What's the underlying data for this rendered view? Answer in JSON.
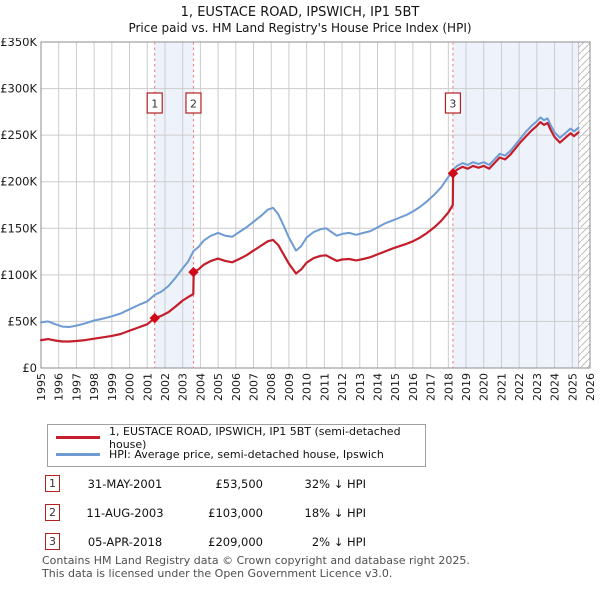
{
  "title": "1, EUSTACE ROAD, IPSWICH, IP1 5BT",
  "subtitle": "Price paid vs. HM Land Registry's House Price Index (HPI)",
  "legend": [
    {
      "label": "1, EUSTACE ROAD, IPSWICH, IP1 5BT (semi-detached house)",
      "color": "#c41e2c"
    },
    {
      "label": "HPI: Average price, semi-detached house, Ipswich",
      "color": "#6e9bd2"
    }
  ],
  "sales": [
    {
      "num": "1",
      "date": "31-MAY-2001",
      "price": "£53,500",
      "hpi_diff": "32% ↓ HPI",
      "year": 2001.42,
      "value": 53500
    },
    {
      "num": "2",
      "date": "11-AUG-2003",
      "price": "£103,000",
      "hpi_diff": "18% ↓ HPI",
      "year": 2003.61,
      "value": 103000
    },
    {
      "num": "3",
      "date": "05-APR-2018",
      "price": "£209,000",
      "hpi_diff": "2% ↓ HPI",
      "year": 2018.26,
      "value": 209000
    }
  ],
  "footer": {
    "line1": "Contains HM Land Registry data © Crown copyright and database right 2025.",
    "line2": "This data is licensed under the Open Government Licence v3.0."
  },
  "chart_data": {
    "type": "line",
    "title": "1, EUSTACE ROAD, IPSWICH, IP1 5BT — Price paid vs. HPI",
    "x_axis": {
      "min": 1995,
      "max": 2026,
      "ticks": [
        1995,
        1996,
        1997,
        1998,
        1999,
        2000,
        2001,
        2002,
        2003,
        2004,
        2005,
        2006,
        2007,
        2008,
        2009,
        2010,
        2011,
        2012,
        2013,
        2014,
        2015,
        2016,
        2017,
        2018,
        2019,
        2020,
        2021,
        2022,
        2023,
        2024,
        2025,
        2026
      ]
    },
    "y_axis": {
      "min": 0,
      "max": 350000,
      "tick_values": [
        0,
        50000,
        100000,
        150000,
        200000,
        250000,
        300000,
        350000
      ],
      "tick_labels": [
        "£0",
        "£50K",
        "£100K",
        "£150K",
        "£200K",
        "£250K",
        "£300K",
        "£350K"
      ]
    },
    "grid": true,
    "legend_position": "bottom",
    "colors": {
      "property_line": "#c41e2c",
      "hpi_line": "#6e9bd2",
      "sale_dashed_line": "#ef8585",
      "band_fill": "#eef3fb",
      "grid_line": "#cccccc",
      "frame": "#8c8c8c",
      "hatch_line": "#bdbdbd",
      "sale_marker": "#cf0a18",
      "number_box_border": "#b42121"
    },
    "bands": [
      {
        "from": 2001.42,
        "to": 2003.61
      },
      {
        "from": 2018.26,
        "to": 2025.35
      }
    ],
    "future_hatch": {
      "from": 2025.35,
      "to": 2026
    },
    "series": [
      {
        "name": "HPI: Average price, semi-detached house, Ipswich",
        "color": "#6e9bd2",
        "width": 2,
        "points": [
          [
            1995.0,
            49000
          ],
          [
            1995.4,
            50000
          ],
          [
            1995.8,
            47000
          ],
          [
            1996.2,
            44500
          ],
          [
            1996.6,
            44000
          ],
          [
            1997.0,
            45500
          ],
          [
            1997.5,
            48000
          ],
          [
            1998.0,
            51000
          ],
          [
            1998.5,
            53000
          ],
          [
            1999.0,
            55500
          ],
          [
            1999.5,
            58500
          ],
          [
            2000.0,
            63000
          ],
          [
            2000.5,
            67500
          ],
          [
            2001.0,
            71500
          ],
          [
            2001.42,
            78500
          ],
          [
            2001.8,
            82000
          ],
          [
            2002.2,
            88000
          ],
          [
            2002.6,
            97000
          ],
          [
            2003.0,
            107000
          ],
          [
            2003.3,
            114000
          ],
          [
            2003.61,
            125500
          ],
          [
            2003.9,
            130000
          ],
          [
            2004.2,
            137000
          ],
          [
            2004.6,
            142000
          ],
          [
            2005.0,
            145000
          ],
          [
            2005.4,
            142000
          ],
          [
            2005.8,
            141000
          ],
          [
            2006.2,
            146000
          ],
          [
            2006.6,
            151000
          ],
          [
            2007.0,
            157000
          ],
          [
            2007.4,
            163000
          ],
          [
            2007.8,
            170000
          ],
          [
            2008.1,
            172000
          ],
          [
            2008.4,
            165000
          ],
          [
            2008.7,
            153000
          ],
          [
            2009.0,
            140000
          ],
          [
            2009.4,
            126000
          ],
          [
            2009.7,
            131000
          ],
          [
            2010.0,
            140000
          ],
          [
            2010.4,
            146000
          ],
          [
            2010.8,
            149000
          ],
          [
            2011.1,
            150000
          ],
          [
            2011.4,
            146000
          ],
          [
            2011.7,
            142000
          ],
          [
            2012.0,
            144000
          ],
          [
            2012.4,
            145000
          ],
          [
            2012.8,
            143000
          ],
          [
            2013.2,
            145000
          ],
          [
            2013.6,
            147000
          ],
          [
            2014.0,
            151000
          ],
          [
            2014.4,
            155000
          ],
          [
            2014.8,
            158000
          ],
          [
            2015.2,
            161000
          ],
          [
            2015.6,
            164000
          ],
          [
            2016.0,
            168000
          ],
          [
            2016.4,
            173000
          ],
          [
            2016.8,
            179000
          ],
          [
            2017.2,
            186000
          ],
          [
            2017.6,
            194000
          ],
          [
            2018.0,
            205000
          ],
          [
            2018.26,
            213000
          ],
          [
            2018.5,
            217000
          ],
          [
            2018.8,
            220000
          ],
          [
            2019.1,
            218000
          ],
          [
            2019.4,
            221000
          ],
          [
            2019.7,
            219000
          ],
          [
            2020.0,
            221000
          ],
          [
            2020.3,
            218000
          ],
          [
            2020.6,
            224000
          ],
          [
            2020.9,
            230000
          ],
          [
            2021.2,
            228000
          ],
          [
            2021.5,
            233000
          ],
          [
            2021.8,
            240000
          ],
          [
            2022.1,
            247000
          ],
          [
            2022.4,
            254000
          ],
          [
            2022.7,
            260000
          ],
          [
            2023.0,
            265000
          ],
          [
            2023.2,
            269000
          ],
          [
            2023.4,
            266000
          ],
          [
            2023.6,
            268000
          ],
          [
            2023.8,
            260000
          ],
          [
            2024.0,
            253000
          ],
          [
            2024.3,
            247000
          ],
          [
            2024.6,
            252000
          ],
          [
            2024.9,
            257000
          ],
          [
            2025.1,
            254000
          ],
          [
            2025.35,
            258000
          ]
        ]
      },
      {
        "name": "1, EUSTACE ROAD, IPSWICH, IP1 5BT (semi-detached house)",
        "color": "#c41e2c",
        "width": 2.2,
        "points": [
          [
            1995.0,
            30000
          ],
          [
            1995.4,
            31000
          ],
          [
            1995.8,
            29500
          ],
          [
            1996.2,
            28500
          ],
          [
            1996.6,
            28500
          ],
          [
            1997.0,
            29000
          ],
          [
            1997.5,
            30000
          ],
          [
            1998.0,
            31500
          ],
          [
            1998.5,
            33000
          ],
          [
            1999.0,
            34500
          ],
          [
            1999.5,
            36500
          ],
          [
            2000.0,
            40000
          ],
          [
            2000.5,
            43500
          ],
          [
            2001.0,
            47000
          ],
          [
            2001.42,
            53500
          ],
          [
            2001.8,
            56000
          ],
          [
            2002.2,
            60000
          ],
          [
            2002.6,
            66000
          ],
          [
            2003.0,
            72500
          ],
          [
            2003.3,
            76000
          ],
          [
            2003.6,
            79500
          ],
          [
            2003.62,
            103000
          ],
          [
            2003.9,
            106000
          ],
          [
            2004.2,
            111000
          ],
          [
            2004.6,
            115000
          ],
          [
            2005.0,
            117500
          ],
          [
            2005.4,
            115000
          ],
          [
            2005.8,
            113500
          ],
          [
            2006.2,
            117000
          ],
          [
            2006.6,
            121000
          ],
          [
            2007.0,
            126000
          ],
          [
            2007.4,
            131000
          ],
          [
            2007.8,
            136000
          ],
          [
            2008.1,
            137500
          ],
          [
            2008.4,
            132000
          ],
          [
            2008.7,
            122000
          ],
          [
            2009.0,
            112000
          ],
          [
            2009.4,
            101500
          ],
          [
            2009.7,
            106000
          ],
          [
            2010.0,
            113000
          ],
          [
            2010.4,
            118000
          ],
          [
            2010.8,
            120500
          ],
          [
            2011.1,
            121000
          ],
          [
            2011.4,
            118000
          ],
          [
            2011.7,
            115000
          ],
          [
            2012.0,
            116500
          ],
          [
            2012.4,
            117000
          ],
          [
            2012.8,
            115500
          ],
          [
            2013.2,
            117000
          ],
          [
            2013.6,
            119000
          ],
          [
            2014.0,
            122000
          ],
          [
            2014.4,
            125000
          ],
          [
            2014.8,
            128000
          ],
          [
            2015.2,
            130500
          ],
          [
            2015.6,
            133000
          ],
          [
            2016.0,
            136000
          ],
          [
            2016.4,
            140000
          ],
          [
            2016.8,
            145000
          ],
          [
            2017.2,
            151000
          ],
          [
            2017.6,
            158000
          ],
          [
            2018.0,
            167000
          ],
          [
            2018.25,
            175000
          ],
          [
            2018.27,
            209000
          ],
          [
            2018.5,
            213000
          ],
          [
            2018.8,
            216000
          ],
          [
            2019.1,
            214000
          ],
          [
            2019.4,
            217000
          ],
          [
            2019.7,
            215000
          ],
          [
            2020.0,
            217000
          ],
          [
            2020.3,
            214000
          ],
          [
            2020.6,
            220000
          ],
          [
            2020.9,
            226000
          ],
          [
            2021.2,
            224000
          ],
          [
            2021.5,
            229000
          ],
          [
            2021.8,
            236000
          ],
          [
            2022.1,
            243000
          ],
          [
            2022.4,
            249000
          ],
          [
            2022.7,
            255000
          ],
          [
            2023.0,
            260000
          ],
          [
            2023.2,
            264000
          ],
          [
            2023.4,
            261000
          ],
          [
            2023.6,
            263000
          ],
          [
            2023.8,
            255000
          ],
          [
            2024.0,
            248000
          ],
          [
            2024.3,
            242000
          ],
          [
            2024.6,
            247000
          ],
          [
            2024.9,
            252000
          ],
          [
            2025.1,
            249000
          ],
          [
            2025.35,
            253000
          ]
        ]
      }
    ]
  }
}
